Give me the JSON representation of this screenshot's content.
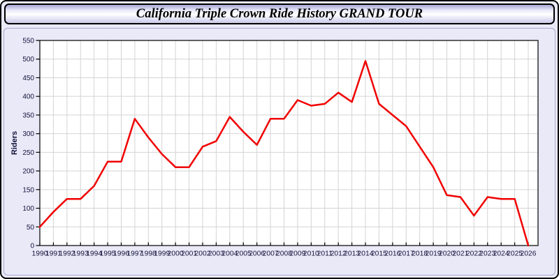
{
  "window": {
    "background": "#e9e9f8",
    "border_color": "#000000"
  },
  "title_bar": {
    "title": "California Triple Crown Ride History GRAND TOUR"
  },
  "chart_data": {
    "type": "line",
    "title": "California Triple Crown Ride History GRAND TOUR",
    "xlabel": "",
    "ylabel": "Riders",
    "x": [
      1990,
      1991,
      1992,
      1993,
      1994,
      1995,
      1996,
      1997,
      1998,
      1999,
      2000,
      2001,
      2002,
      2003,
      2004,
      2005,
      2006,
      2007,
      2008,
      2009,
      2010,
      2011,
      2012,
      2013,
      2014,
      2015,
      2016,
      2017,
      2018,
      2019,
      2020,
      2021,
      2022,
      2023,
      2024,
      2025,
      2026
    ],
    "series": [
      {
        "name": "Riders",
        "values": [
          50,
          90,
          125,
          125,
          160,
          225,
          225,
          340,
          290,
          245,
          210,
          210,
          265,
          280,
          345,
          305,
          270,
          340,
          340,
          390,
          375,
          380,
          410,
          385,
          495,
          380,
          350,
          320,
          265,
          210,
          135,
          130,
          80,
          130,
          125,
          125,
          0
        ]
      }
    ],
    "ylim": [
      0,
      550
    ],
    "ytick_step": 50,
    "grid": true,
    "legend": "none",
    "line_color": "#f00000",
    "grid_color": "#d4d4d4",
    "axis_color": "#000000",
    "tick_label_color": "#14143c",
    "plot_background": "#ffffff"
  }
}
